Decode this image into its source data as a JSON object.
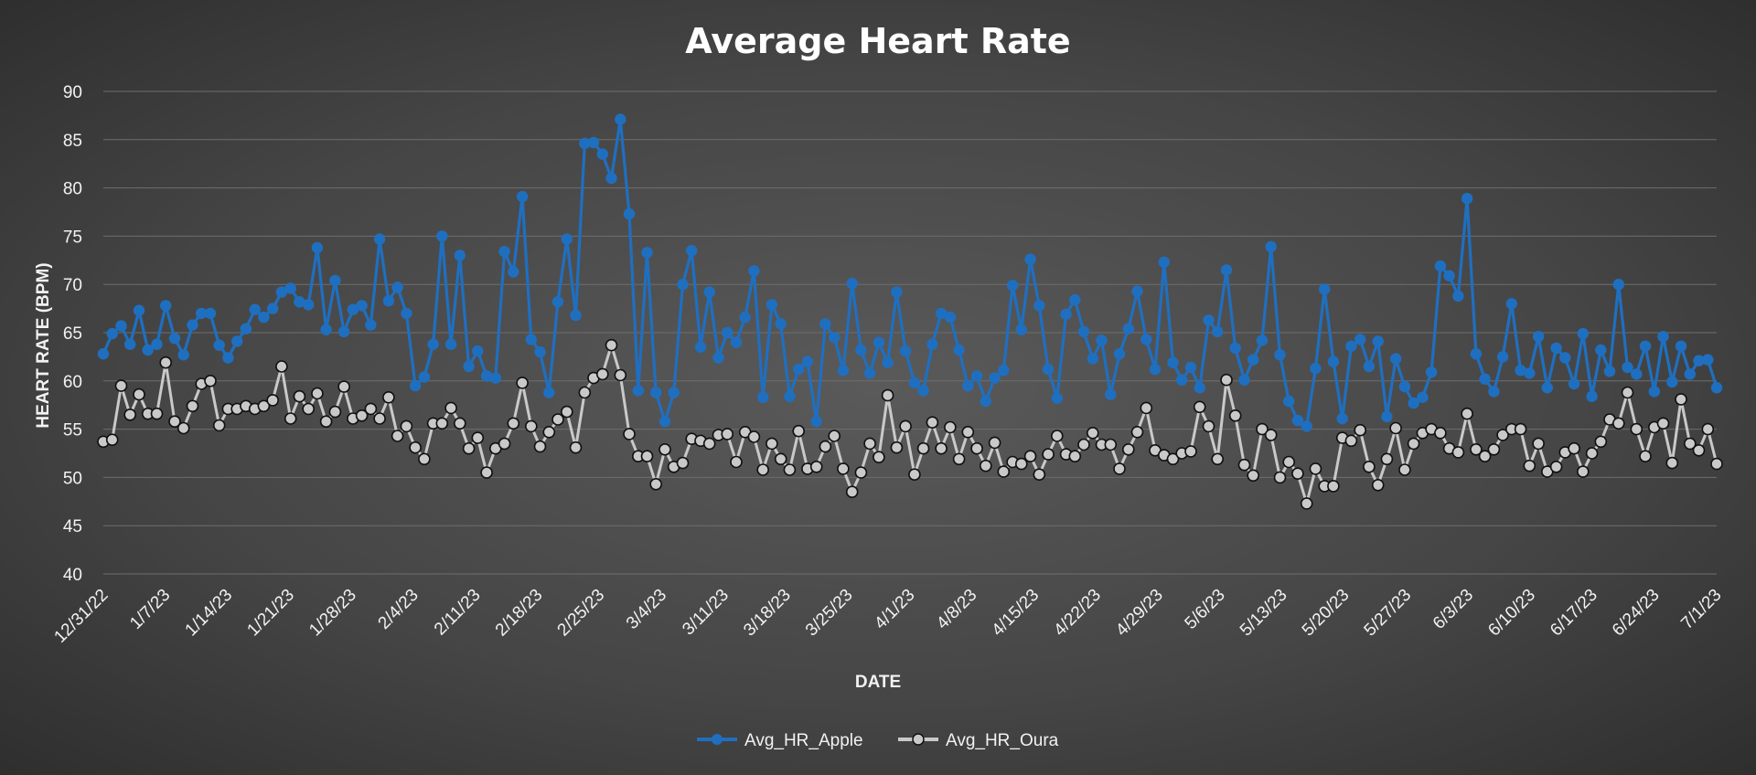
{
  "chart_data": {
    "type": "line",
    "title": "Average Heart Rate",
    "xlabel": "DATE",
    "ylabel": "HEART RATE (BPM)",
    "ylim": [
      40,
      90
    ],
    "yticks": [
      40,
      45,
      50,
      55,
      60,
      65,
      70,
      75,
      80,
      85,
      90
    ],
    "grid": true,
    "legend_position": "bottom",
    "x_start": "12/31/22",
    "x_end": "7/1/23",
    "x_tick_labels": [
      "12/31/22",
      "1/7/23",
      "1/14/23",
      "1/21/23",
      "1/28/23",
      "2/4/23",
      "2/11/23",
      "2/18/23",
      "2/25/23",
      "3/4/23",
      "3/11/23",
      "3/18/23",
      "3/25/23",
      "4/1/23",
      "4/8/23",
      "4/15/23",
      "4/22/23",
      "4/29/23",
      "5/6/23",
      "5/13/23",
      "5/20/23",
      "5/27/23",
      "6/3/23",
      "6/10/23",
      "6/17/23",
      "6/24/23",
      "7/1/23"
    ],
    "series": [
      {
        "name": "Avg_HR_Apple",
        "color": "#1f6fc0",
        "marker_fill": "#1f6fc0",
        "values": [
          62.8,
          64.9,
          65.7,
          63.8,
          67.3,
          63.2,
          63.8,
          67.8,
          64.4,
          62.7,
          65.8,
          67.0,
          67.0,
          63.7,
          62.4,
          64.1,
          65.4,
          67.4,
          66.6,
          67.5,
          69.2,
          69.6,
          68.2,
          67.9,
          73.8,
          65.3,
          70.4,
          65.1,
          67.4,
          67.8,
          65.8,
          74.7,
          68.3,
          69.7,
          67.0,
          59.5,
          60.4,
          63.8,
          75.0,
          63.8,
          73.0,
          61.5,
          63.1,
          60.5,
          60.3,
          73.4,
          71.3,
          79.1,
          64.3,
          63.0,
          58.8,
          68.2,
          74.7,
          66.8,
          84.6,
          84.7,
          83.5,
          81.0,
          87.1,
          77.3,
          59.0,
          73.3,
          58.8,
          55.8,
          58.8,
          70.0,
          73.5,
          63.5,
          69.2,
          62.4,
          65.0,
          64.0,
          66.6,
          71.4,
          58.3,
          67.9,
          65.9,
          58.4,
          61.2,
          62.0,
          55.8,
          65.9,
          64.5,
          61.1,
          70.1,
          63.2,
          60.8,
          64.0,
          61.9,
          69.2,
          63.1,
          59.8,
          59.0,
          63.8,
          67.0,
          66.6,
          63.2,
          59.5,
          60.5,
          57.9,
          60.3,
          61.1,
          69.9,
          65.3,
          72.6,
          67.8,
          61.2,
          58.2,
          66.9,
          68.4,
          65.1,
          62.3,
          64.2,
          58.6,
          62.8,
          65.4,
          69.3,
          64.3,
          61.2,
          72.3,
          61.9,
          60.1,
          61.4,
          59.3,
          66.3,
          65.1,
          71.5,
          63.4,
          60.1,
          62.2,
          64.2,
          73.9,
          62.7,
          57.9,
          55.9,
          55.3,
          61.3,
          69.5,
          62.0,
          56.1,
          63.6,
          64.3,
          61.5,
          64.1,
          56.3,
          62.3,
          59.4,
          57.7,
          58.3,
          60.9,
          71.9,
          70.9,
          68.8,
          78.9,
          62.8,
          60.2,
          58.9,
          62.5,
          68.0,
          61.1,
          60.8,
          64.6,
          59.3,
          63.4,
          62.4,
          59.7,
          64.9,
          58.4,
          63.2,
          61.0,
          70.0,
          61.4,
          60.7,
          63.6,
          58.9,
          64.6,
          59.9,
          63.6,
          60.7,
          62.1,
          62.2,
          59.3
        ]
      },
      {
        "name": "Avg_HR_Oura",
        "color": "#c9c9c9",
        "marker_fill": "#c9c9c9",
        "values": [
          53.7,
          53.9,
          59.5,
          56.5,
          58.6,
          56.6,
          56.6,
          61.9,
          55.8,
          55.1,
          57.4,
          59.7,
          60.0,
          55.4,
          57.1,
          57.1,
          57.4,
          57.1,
          57.4,
          58.0,
          61.5,
          56.1,
          58.4,
          57.1,
          58.7,
          55.8,
          56.8,
          59.4,
          56.1,
          56.4,
          57.1,
          56.1,
          58.3,
          54.3,
          55.3,
          53.1,
          51.9,
          55.6,
          55.6,
          57.2,
          55.6,
          53.0,
          54.1,
          50.5,
          53.0,
          53.5,
          55.6,
          59.8,
          55.3,
          53.2,
          54.7,
          56.0,
          56.8,
          53.1,
          58.8,
          60.3,
          60.7,
          63.7,
          60.6,
          54.5,
          52.2,
          52.2,
          49.3,
          52.9,
          51.1,
          51.5,
          54.0,
          53.8,
          53.5,
          54.4,
          54.5,
          51.6,
          54.7,
          54.2,
          50.8,
          53.5,
          51.9,
          50.8,
          54.8,
          50.9,
          51.1,
          53.2,
          54.3,
          50.9,
          48.5,
          50.5,
          53.5,
          52.1,
          58.5,
          53.1,
          55.3,
          50.3,
          53.0,
          55.7,
          53.0,
          55.2,
          51.9,
          54.7,
          53.0,
          51.2,
          53.6,
          50.6,
          51.6,
          51.4,
          52.2,
          50.3,
          52.4,
          54.3,
          52.4,
          52.2,
          53.4,
          54.6,
          53.4,
          53.4,
          50.9,
          52.9,
          54.7,
          57.2,
          52.8,
          52.3,
          51.9,
          52.5,
          52.7,
          57.3,
          55.3,
          51.9,
          60.1,
          56.4,
          51.3,
          50.2,
          55.0,
          54.4,
          50.0,
          51.6,
          50.4,
          47.3,
          50.9,
          49.1,
          49.1,
          54.1,
          53.8,
          54.9,
          51.1,
          49.2,
          51.9,
          55.1,
          50.8,
          53.5,
          54.6,
          55.0,
          54.6,
          53.0,
          52.6,
          56.6,
          52.9,
          52.2,
          52.9,
          54.4,
          55.0,
          55.0,
          51.2,
          53.5,
          50.6,
          51.1,
          52.6,
          53.0,
          50.6,
          52.5,
          53.7,
          56.0,
          55.6,
          58.8,
          55.0,
          52.2,
          55.2,
          55.6,
          51.5,
          58.1,
          53.5,
          52.8,
          55.0,
          51.4
        ]
      }
    ]
  }
}
